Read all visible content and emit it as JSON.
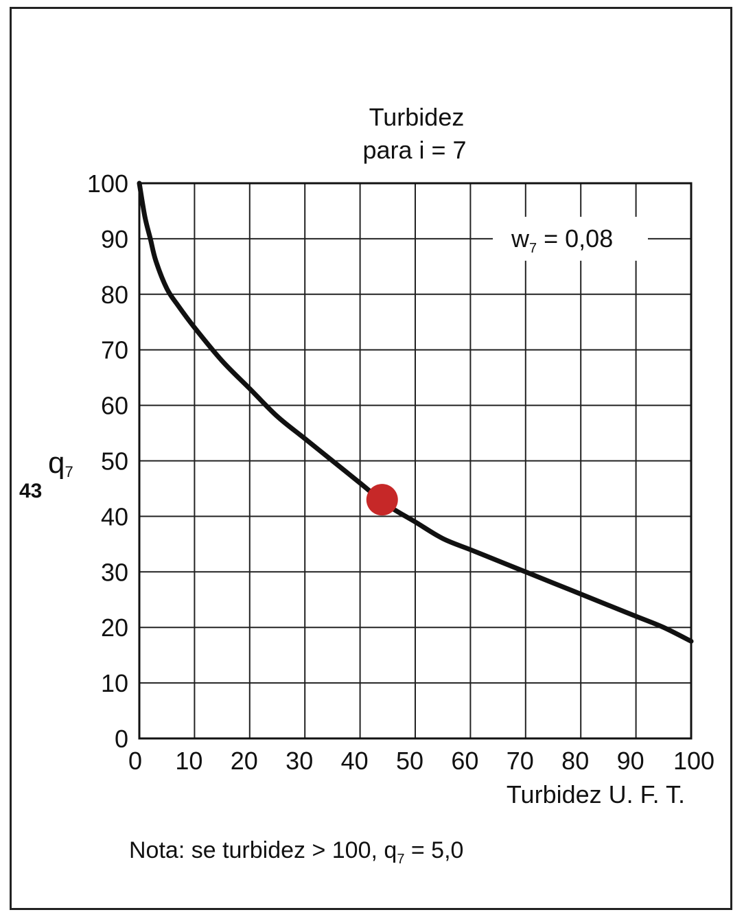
{
  "chart_data": {
    "type": "line",
    "title_line1": "Turbidez",
    "title_line2": "para i = 7",
    "xlabel": "Turbidez U. F. T.",
    "ylabel_main": "q",
    "ylabel_sub": "7",
    "xlim": [
      0,
      100
    ],
    "ylim": [
      0,
      100
    ],
    "x_ticks": [
      0,
      10,
      20,
      30,
      40,
      50,
      60,
      70,
      80,
      90,
      100
    ],
    "y_ticks": [
      0,
      10,
      20,
      30,
      40,
      50,
      60,
      70,
      80,
      90,
      100
    ],
    "x_tick_labels": [
      "0",
      "10",
      "20",
      "30",
      "40",
      "50",
      "60",
      "70",
      "80",
      "90",
      "100"
    ],
    "y_tick_labels": [
      "0",
      "10",
      "20",
      "30",
      "40",
      "50",
      "60",
      "70",
      "80",
      "90",
      "100"
    ],
    "grid": true,
    "series": [
      {
        "x": [
          0,
          1,
          2,
          3,
          5,
          7,
          10,
          15,
          20,
          25,
          30,
          35,
          40,
          45,
          50,
          55,
          60,
          65,
          70,
          75,
          80,
          85,
          90,
          95,
          100
        ],
        "y": [
          100,
          94,
          90,
          86,
          81,
          78,
          74,
          68,
          63,
          58,
          54,
          50,
          46,
          42,
          39,
          36,
          34,
          32,
          30,
          28,
          26,
          24,
          22,
          20,
          17.5
        ]
      }
    ],
    "annotation_main": "w",
    "annotation_sub": "7",
    "annotation_value": " = 0,08",
    "highlight": {
      "x": 44,
      "y": 43,
      "label": "43",
      "color": "#c62828"
    },
    "note_prefix": "Nota: se turbidez > 100, q",
    "note_sub": "7",
    "note_suffix": " =  5,0"
  }
}
